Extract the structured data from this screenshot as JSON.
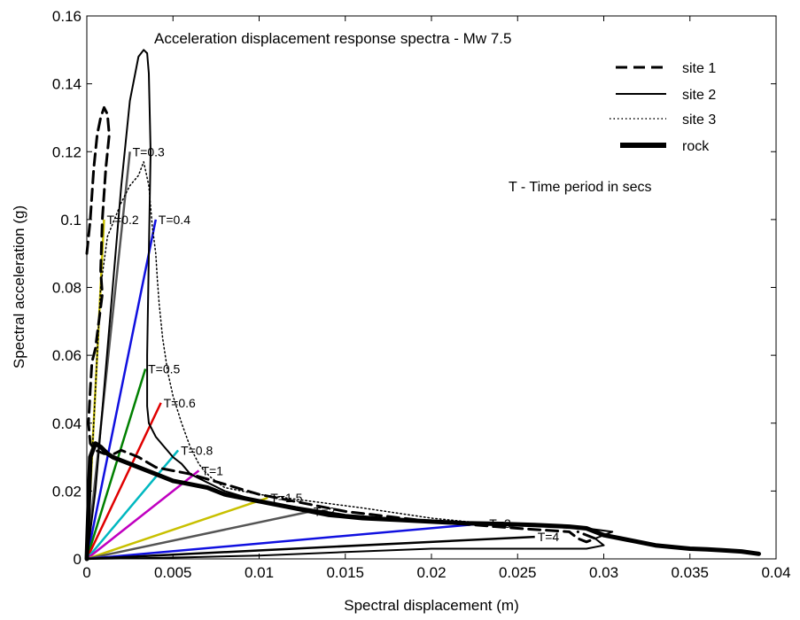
{
  "chart_data": {
    "type": "line",
    "title": "Acceleration displacement response spectra - Mw 7.5",
    "xlabel": "Spectral displacement (m)",
    "ylabel": "Spectral acceleration (g)",
    "xlim": [
      0,
      0.04
    ],
    "ylim": [
      0,
      0.16
    ],
    "x_ticks": [
      "0",
      "0.005",
      "0.01",
      "0.015",
      "0.02",
      "0.025",
      "0.03",
      "0.035",
      "0.04"
    ],
    "y_ticks": [
      "0",
      "0.02",
      "0.04",
      "0.06",
      "0.08",
      "0.1",
      "0.12",
      "0.14",
      "0.16"
    ],
    "grid": false,
    "legend_position": "top-right",
    "annotation": "T - Time period in secs",
    "series": [
      {
        "name": "site 1",
        "style": "dashed",
        "color": "#000000",
        "x": [
          0.0,
          0.0002,
          0.0004,
          0.0006,
          0.0008,
          0.001,
          0.0012,
          0.0013,
          0.0011,
          0.0009,
          0.0008,
          0.0009,
          0.0007,
          0.0005,
          0.0003,
          0.0002,
          0.0001,
          0.0002,
          0.0005,
          0.001,
          0.0016,
          0.002,
          0.0025,
          0.003,
          0.004,
          0.006,
          0.01,
          0.015,
          0.02,
          0.025,
          0.028,
          0.0285,
          0.029,
          0.0295,
          0.0285
        ],
        "y": [
          0.09,
          0.1,
          0.115,
          0.125,
          0.13,
          0.133,
          0.131,
          0.125,
          0.115,
          0.1,
          0.085,
          0.078,
          0.07,
          0.062,
          0.058,
          0.05,
          0.04,
          0.034,
          0.032,
          0.031,
          0.031,
          0.032,
          0.031,
          0.03,
          0.027,
          0.025,
          0.019,
          0.014,
          0.011,
          0.009,
          0.008,
          0.006,
          0.005,
          0.006,
          0.008
        ]
      },
      {
        "name": "site 2",
        "style": "solid",
        "color": "#000000",
        "x": [
          0.0,
          0.0005,
          0.001,
          0.0015,
          0.002,
          0.0025,
          0.003,
          0.0033,
          0.0035,
          0.0036,
          0.0037,
          0.0036,
          0.0035,
          0.0035,
          0.0036,
          0.004,
          0.0045,
          0.005,
          0.0055,
          0.006,
          0.008,
          0.01,
          0.015,
          0.02,
          0.025,
          0.029,
          0.0305,
          0.0295,
          0.03,
          0.029,
          0.026,
          0.02,
          0.015,
          0.01,
          0.006,
          0.003,
          0.0
        ],
        "y": [
          0.0,
          0.02,
          0.05,
          0.08,
          0.11,
          0.135,
          0.148,
          0.15,
          0.149,
          0.143,
          0.12,
          0.09,
          0.06,
          0.045,
          0.04,
          0.036,
          0.033,
          0.03,
          0.028,
          0.025,
          0.02,
          0.017,
          0.013,
          0.011,
          0.01,
          0.009,
          0.008,
          0.006,
          0.004,
          0.003,
          0.003,
          0.003,
          0.002,
          0.001,
          0.0005,
          0.0002,
          0.0
        ]
      },
      {
        "name": "site 3",
        "style": "dotted",
        "color": "#000000",
        "x": [
          0.0,
          0.0004,
          0.0008,
          0.0012,
          0.0016,
          0.002,
          0.0025,
          0.003,
          0.0033,
          0.0036,
          0.0038,
          0.004,
          0.0041,
          0.0042,
          0.0044,
          0.0047,
          0.005,
          0.0055,
          0.006,
          0.0065,
          0.0068,
          0.0072,
          0.008,
          0.01,
          0.013,
          0.016,
          0.02,
          0.024
        ],
        "y": [
          0.0,
          0.04,
          0.08,
          0.095,
          0.1,
          0.105,
          0.11,
          0.113,
          0.117,
          0.11,
          0.098,
          0.09,
          0.082,
          0.075,
          0.065,
          0.055,
          0.048,
          0.04,
          0.033,
          0.028,
          0.026,
          0.024,
          0.021,
          0.019,
          0.017,
          0.015,
          0.012,
          0.01
        ]
      },
      {
        "name": "rock",
        "style": "thick",
        "color": "#000000",
        "x": [
          0.0,
          0.0002,
          0.0005,
          0.0008,
          0.001,
          0.0012,
          0.0015,
          0.002,
          0.0025,
          0.003,
          0.004,
          0.005,
          0.006,
          0.007,
          0.008,
          0.01,
          0.012,
          0.014,
          0.016,
          0.018,
          0.02,
          0.022,
          0.024,
          0.026,
          0.028,
          0.029,
          0.03,
          0.031,
          0.032,
          0.033,
          0.034,
          0.035,
          0.036,
          0.037,
          0.038,
          0.039
        ],
        "y": [
          0.0,
          0.03,
          0.034,
          0.033,
          0.032,
          0.031,
          0.03,
          0.029,
          0.028,
          0.027,
          0.025,
          0.023,
          0.022,
          0.021,
          0.019,
          0.017,
          0.015,
          0.013,
          0.012,
          0.0115,
          0.011,
          0.0105,
          0.0103,
          0.01,
          0.0095,
          0.009,
          0.007,
          0.006,
          0.005,
          0.004,
          0.0035,
          0.003,
          0.0028,
          0.0025,
          0.0022,
          0.0015
        ]
      }
    ],
    "period_lines": [
      {
        "label": "T=0.2",
        "x_end": 0.001,
        "y_end": 0.1,
        "color": "#c8c000"
      },
      {
        "label": "T=0.3",
        "x_end": 0.0025,
        "y_end": 0.12,
        "color": "#555555"
      },
      {
        "label": "T=0.4",
        "x_end": 0.004,
        "y_end": 0.1,
        "color": "#1010e0"
      },
      {
        "label": "T=0.5",
        "x_end": 0.0034,
        "y_end": 0.056,
        "color": "#008000"
      },
      {
        "label": "T=0.6",
        "x_end": 0.0043,
        "y_end": 0.046,
        "color": "#e00000"
      },
      {
        "label": "T=0.8",
        "x_end": 0.0053,
        "y_end": 0.032,
        "color": "#00b8c0"
      },
      {
        "label": "T=1",
        "x_end": 0.0065,
        "y_end": 0.026,
        "color": "#c000c0"
      },
      {
        "label": "T=1.5",
        "x_end": 0.0105,
        "y_end": 0.018,
        "color": "#c8c000"
      },
      {
        "label": "T=2",
        "x_end": 0.013,
        "y_end": 0.014,
        "color": "#555555"
      },
      {
        "label": "T=3",
        "x_end": 0.0232,
        "y_end": 0.0105,
        "color": "#1010e0"
      },
      {
        "label": "T=4",
        "x_end": 0.026,
        "y_end": 0.0065,
        "color": "#000000"
      }
    ]
  }
}
